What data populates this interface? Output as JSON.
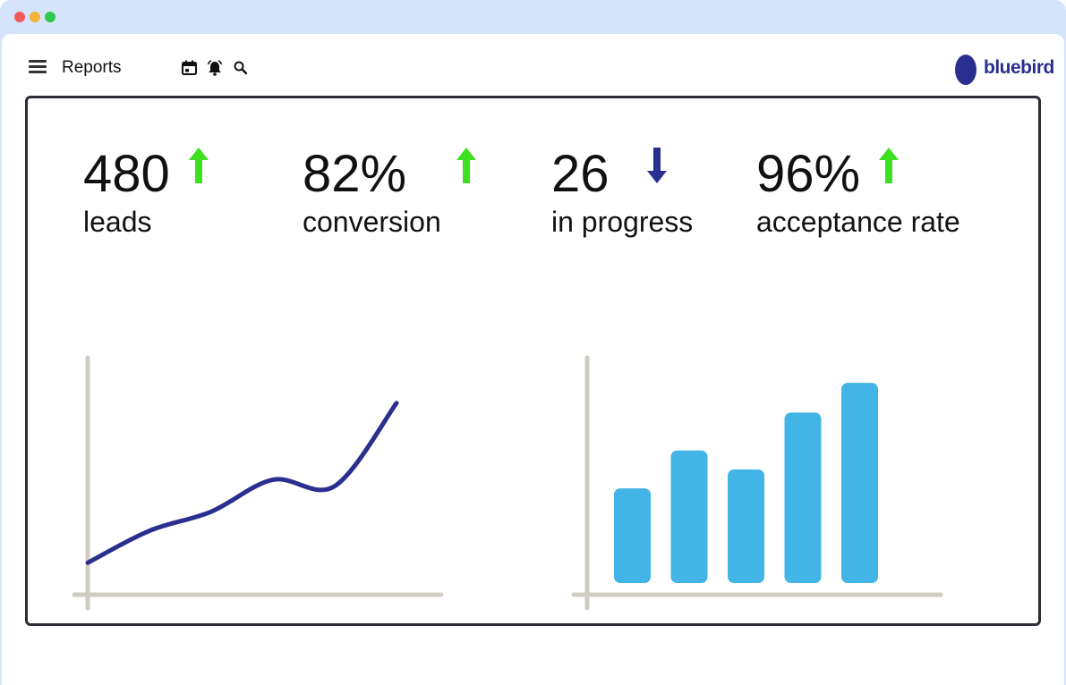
{
  "window": {
    "title_dots": [
      "close",
      "minimize",
      "maximize"
    ],
    "colors": {
      "close": "#f25b5b",
      "minimize": "#f6b23a",
      "maximize": "#2ec94b"
    }
  },
  "topbar": {
    "title": "Reports",
    "icons": [
      "menu-icon",
      "calendar-icon",
      "bell-icon",
      "search-icon"
    ],
    "logo_text": "bluebird"
  },
  "stats": [
    {
      "value": "480",
      "label": "leads",
      "trend": "up"
    },
    {
      "value": "82%",
      "label": "conversion",
      "trend": "up"
    },
    {
      "value": "26",
      "label": "in progress",
      "trend": "down"
    },
    {
      "value": "96%",
      "label": "acceptance rate",
      "trend": "up"
    }
  ],
  "colors": {
    "trend_up": "#3ee021",
    "trend_down": "#2a2f8f",
    "line": "#2a2f8f",
    "bar": "#42b4e5",
    "axis": "#cfcdc1",
    "brand": "#2a2f8f"
  },
  "chart_data": [
    {
      "type": "line",
      "x": [
        0,
        1,
        2,
        3,
        4,
        5
      ],
      "values": [
        1.0,
        2.0,
        2.6,
        3.6,
        3.4,
        6.0
      ],
      "xlabel": "",
      "ylabel": ""
    },
    {
      "type": "bar",
      "categories": [
        "",
        "",
        "",
        "",
        ""
      ],
      "values": [
        3.5,
        4.9,
        4.2,
        6.3,
        7.4
      ],
      "xlabel": "",
      "ylabel": "",
      "ylim": [
        0,
        8
      ]
    }
  ]
}
